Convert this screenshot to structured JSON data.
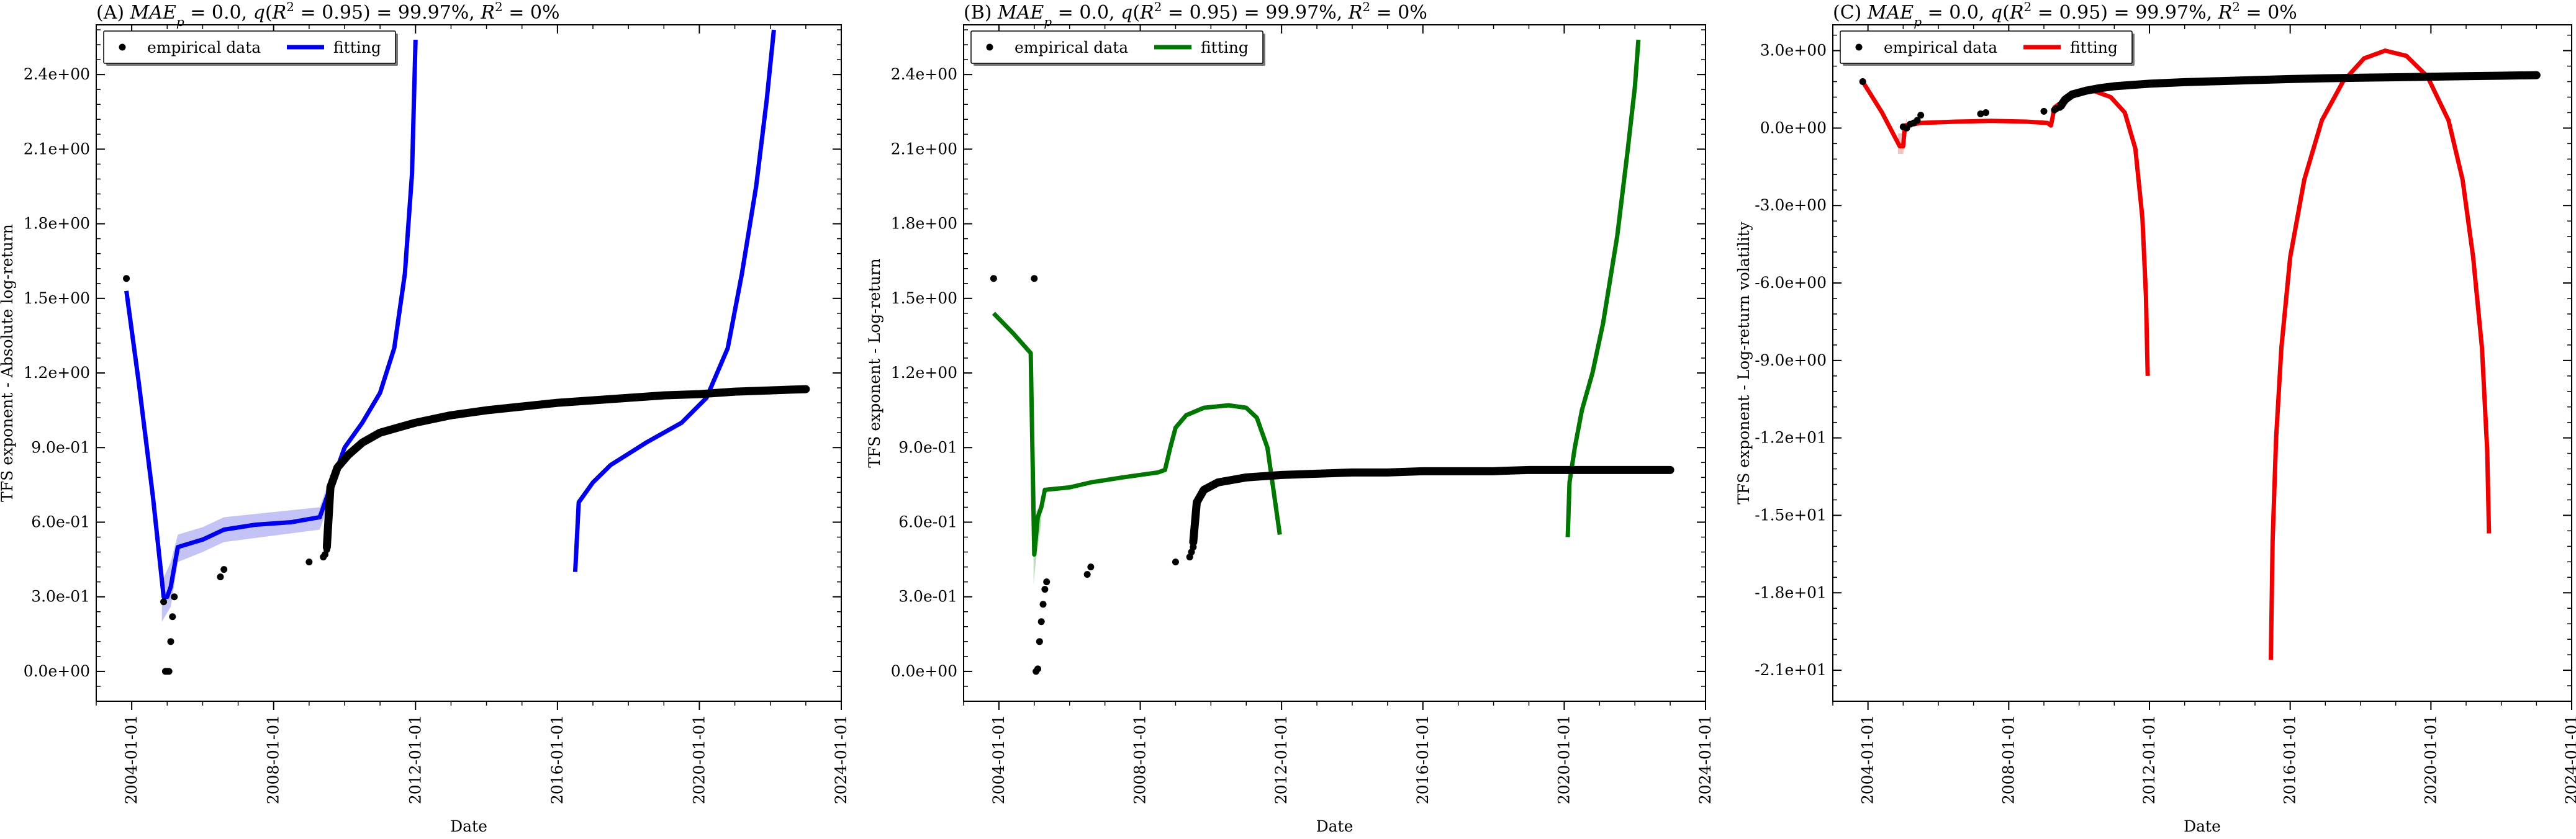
{
  "chart_data": [
    {
      "type": "line",
      "title": "(A) MAE_p = 0.0, q(R^2 = 0.95) = 99.97%, R^2 = 0%",
      "xlabel": "Date",
      "ylabel": "TFS exponent - Absolute log-return",
      "x_ticks": [
        "2004-01-01",
        "2008-01-01",
        "2012-01-01",
        "2016-01-01",
        "2020-01-01",
        "2024-01-01"
      ],
      "xlim": [
        "2003-01-01",
        "2024-01-01"
      ],
      "y_ticks": [
        "0.0e+00",
        "3.0e-01",
        "6.0e-01",
        "9.0e-01",
        "1.2e+00",
        "1.5e+00",
        "1.8e+00",
        "2.1e+00",
        "2.4e+00"
      ],
      "ylim": [
        -0.12,
        2.6
      ],
      "legend": {
        "position": "top-left",
        "entries": [
          "empirical data",
          "fitting"
        ]
      },
      "colors": {
        "fit": "#0000ee",
        "band": "#b8b8f4",
        "data": "#000000"
      },
      "series": [
        {
          "name": "empirical data",
          "kind": "scatter",
          "x": [
            2003.85,
            2004.9,
            2004.95,
            2005.0,
            2005.05,
            2005.1,
            2005.15,
            2005.2,
            2006.5,
            2006.6,
            2009.0,
            2009.4,
            2009.45,
            2009.5
          ],
          "y": [
            1.58,
            0.28,
            0.0,
            0.0,
            0.0,
            0.12,
            0.22,
            0.3,
            0.38,
            0.41,
            0.44,
            0.46,
            0.47,
            0.49
          ]
        },
        {
          "name": "empirical data",
          "kind": "curve",
          "x": [
            2009.5,
            2009.6,
            2009.8,
            2010.1,
            2010.5,
            2011.0,
            2012.0,
            2013.0,
            2014.0,
            2015.0,
            2016.0,
            2017.0,
            2018.0,
            2019.0,
            2020.0,
            2021.0,
            2022.0,
            2023.0
          ],
          "y": [
            0.5,
            0.74,
            0.82,
            0.87,
            0.92,
            0.96,
            1.0,
            1.03,
            1.05,
            1.065,
            1.08,
            1.09,
            1.1,
            1.11,
            1.115,
            1.125,
            1.13,
            1.135
          ]
        },
        {
          "name": "fitting",
          "kind": "line",
          "segments": [
            {
              "x": [
                2003.85,
                2004.2,
                2004.6,
                2004.9,
                2005.0,
                2005.1,
                2005.3,
                2006.0,
                2006.6,
                2007.5,
                2008.5,
                2009.3,
                2009.6,
                2010.0,
                2010.5,
                2011.0,
                2011.4,
                2011.7,
                2011.9,
                2012.0
              ],
              "y": [
                1.53,
                1.16,
                0.7,
                0.3,
                0.3,
                0.34,
                0.5,
                0.53,
                0.57,
                0.59,
                0.6,
                0.62,
                0.74,
                0.9,
                1.0,
                1.12,
                1.3,
                1.6,
                2.0,
                2.54
              ]
            },
            {
              "x": [
                2016.5,
                2016.6,
                2017.0,
                2017.5,
                2018.5,
                2019.5,
                2020.2,
                2020.8,
                2021.2,
                2021.6,
                2021.9,
                2022.1
              ],
              "y": [
                0.4,
                0.68,
                0.76,
                0.83,
                0.92,
                1.0,
                1.1,
                1.3,
                1.6,
                1.95,
                2.3,
                2.58
              ]
            }
          ]
        },
        {
          "name": "fitting band",
          "kind": "band",
          "x": [
            2004.85,
            2005.1,
            2005.3,
            2006.0,
            2006.6,
            2009.3,
            2009.6
          ],
          "upper": [
            0.36,
            0.44,
            0.55,
            0.58,
            0.62,
            0.66,
            0.78
          ],
          "lower": [
            0.2,
            0.26,
            0.44,
            0.48,
            0.52,
            0.57,
            0.69
          ]
        }
      ]
    },
    {
      "type": "line",
      "title": "(B) MAE_p = 0.0, q(R^2 = 0.95) = 99.97%, R^2 = 0%",
      "xlabel": "Date",
      "ylabel": "TFS exponent - Log-return",
      "x_ticks": [
        "2004-01-01",
        "2008-01-01",
        "2012-01-01",
        "2016-01-01",
        "2020-01-01",
        "2024-01-01"
      ],
      "xlim": [
        "2003-01-01",
        "2024-01-01"
      ],
      "y_ticks": [
        "0.0e+00",
        "3.0e-01",
        "6.0e-01",
        "9.0e-01",
        "1.2e+00",
        "1.5e+00",
        "1.8e+00",
        "2.1e+00",
        "2.4e+00"
      ],
      "ylim": [
        -0.12,
        2.6
      ],
      "legend": {
        "position": "top-left",
        "entries": [
          "empirical data",
          "fitting"
        ]
      },
      "colors": {
        "fit": "#007700",
        "band": "#b0d8b0",
        "data": "#000000"
      },
      "series": [
        {
          "name": "empirical data",
          "kind": "scatter",
          "x": [
            2003.85,
            2005.0,
            2005.05,
            2005.1,
            2005.15,
            2005.2,
            2005.25,
            2005.3,
            2005.35,
            2006.5,
            2006.6,
            2009.0,
            2009.4,
            2009.45,
            2009.5
          ],
          "y": [
            1.58,
            1.58,
            0.0,
            0.01,
            0.12,
            0.2,
            0.27,
            0.33,
            0.36,
            0.39,
            0.42,
            0.44,
            0.46,
            0.48,
            0.5
          ]
        },
        {
          "name": "empirical data",
          "kind": "curve",
          "x": [
            2009.5,
            2009.6,
            2009.8,
            2010.2,
            2010.6,
            2011.0,
            2012.0,
            2013.0,
            2014.0,
            2015.0,
            2016.0,
            2017.0,
            2018.0,
            2019.0,
            2020.0,
            2021.0,
            2022.0,
            2023.0
          ],
          "y": [
            0.52,
            0.68,
            0.73,
            0.76,
            0.77,
            0.78,
            0.79,
            0.795,
            0.8,
            0.8,
            0.805,
            0.805,
            0.805,
            0.81,
            0.81,
            0.81,
            0.81,
            0.81
          ]
        },
        {
          "name": "fitting",
          "kind": "line",
          "segments": [
            {
              "x": [
                2003.85,
                2004.4,
                2004.9,
                2005.0,
                2005.02,
                2005.1,
                2005.2,
                2005.3,
                2006.0,
                2006.6,
                2007.5,
                2008.5,
                2008.7,
                2008.85,
                2009.0,
                2009.3,
                2009.8,
                2010.5,
                2011.0,
                2011.3,
                2011.6,
                2011.8,
                2011.9,
                2011.95
              ],
              "y": [
                1.44,
                1.36,
                1.28,
                0.47,
                0.5,
                0.62,
                0.66,
                0.73,
                0.74,
                0.76,
                0.78,
                0.8,
                0.81,
                0.9,
                0.98,
                1.03,
                1.06,
                1.07,
                1.06,
                1.02,
                0.9,
                0.7,
                0.6,
                0.55
              ]
            },
            {
              "x": [
                2020.1,
                2020.15,
                2020.3,
                2020.5,
                2020.8,
                2021.1,
                2021.5,
                2021.8,
                2022.0,
                2022.1
              ],
              "y": [
                0.54,
                0.76,
                0.9,
                1.05,
                1.2,
                1.4,
                1.75,
                2.1,
                2.35,
                2.54
              ]
            }
          ]
        },
        {
          "name": "fitting band",
          "kind": "band",
          "x": [
            2004.98,
            2005.05,
            2005.2
          ],
          "upper": [
            0.58,
            0.64,
            0.68
          ],
          "lower": [
            0.35,
            0.45,
            0.6
          ]
        }
      ]
    },
    {
      "type": "line",
      "title": "(C) MAE_p = 0.0, q(R^2 = 0.95) = 99.97%, R^2 = 0%",
      "xlabel": "Date",
      "ylabel": "TFS exponent - Log-return volatility",
      "x_ticks": [
        "2004-01-01",
        "2008-01-01",
        "2012-01-01",
        "2016-01-01",
        "2020-01-01",
        "2024-01-01"
      ],
      "xlim": [
        "2003-01-01",
        "2024-01-01"
      ],
      "y_ticks": [
        "-2.1e+01",
        "-1.8e+01",
        "-1.5e+01",
        "-1.2e+01",
        "-9.0e+00",
        "-6.0e+00",
        "-3.0e+00",
        "0.0e+00",
        "3.0e+00"
      ],
      "ylim": [
        -22.2,
        4.0
      ],
      "legend": {
        "position": "top-left",
        "entries": [
          "empirical data",
          "fitting"
        ]
      },
      "colors": {
        "fit": "#ee0000",
        "band": "#f4b8b8",
        "data": "#000000"
      },
      "series": [
        {
          "name": "empirical data",
          "kind": "scatter",
          "x": [
            2003.85,
            2005.0,
            2005.1,
            2005.2,
            2005.3,
            2005.4,
            2005.5,
            2007.2,
            2007.35,
            2009.0,
            2009.3,
            2009.35,
            2009.45,
            2009.5
          ],
          "y": [
            1.8,
            0.05,
            0.0,
            0.15,
            0.2,
            0.3,
            0.5,
            0.55,
            0.6,
            0.65,
            0.7,
            0.75,
            0.8,
            0.85
          ]
        },
        {
          "name": "empirical data",
          "kind": "curve",
          "x": [
            2009.5,
            2009.6,
            2009.8,
            2010.2,
            2010.6,
            2011.0,
            2012.0,
            2013.0,
            2014.0,
            2015.0,
            2016.0,
            2017.0,
            2018.0,
            2019.0,
            2020.0,
            2021.0,
            2022.0,
            2023.0
          ],
          "y": [
            0.9,
            1.1,
            1.3,
            1.45,
            1.55,
            1.62,
            1.72,
            1.78,
            1.82,
            1.86,
            1.9,
            1.93,
            1.95,
            1.97,
            1.99,
            2.01,
            2.03,
            2.05
          ]
        },
        {
          "name": "fitting",
          "kind": "line",
          "segments": [
            {
              "x": [
                2003.85,
                2004.4,
                2004.9,
                2005.0,
                2005.05,
                2005.3,
                2005.5,
                2006.5,
                2007.5,
                2008.5,
                2009.1,
                2009.2,
                2009.3,
                2009.6,
                2010.0,
                2010.4,
                2010.9,
                2011.3,
                2011.6,
                2011.8,
                2011.9,
                2011.95
              ],
              "y": [
                1.8,
                0.6,
                -0.7,
                -0.7,
                0.1,
                0.15,
                0.2,
                0.25,
                0.28,
                0.25,
                0.2,
                0.1,
                0.8,
                1.1,
                1.4,
                1.45,
                1.2,
                0.6,
                -0.8,
                -3.5,
                -6.5,
                -9.6
              ]
            },
            {
              "x": [
                2015.45,
                2015.5,
                2015.6,
                2015.75,
                2016.0,
                2016.4,
                2016.9,
                2017.5,
                2018.1,
                2018.7,
                2019.3,
                2019.9,
                2020.5,
                2020.9,
                2021.2,
                2021.45,
                2021.6,
                2021.65
              ],
              "y": [
                -20.6,
                -16.0,
                -12.0,
                -8.5,
                -5.0,
                -2.0,
                0.3,
                1.8,
                2.7,
                3.0,
                2.8,
                2.0,
                0.3,
                -2.0,
                -5.0,
                -8.5,
                -12.5,
                -15.7
              ]
            }
          ]
        },
        {
          "name": "fitting band",
          "kind": "band",
          "x": [
            2004.85,
            2005.0,
            2005.1
          ],
          "upper": [
            -0.2,
            -0.2,
            0.4
          ],
          "lower": [
            -1.0,
            -1.0,
            -0.2
          ]
        }
      ]
    }
  ]
}
